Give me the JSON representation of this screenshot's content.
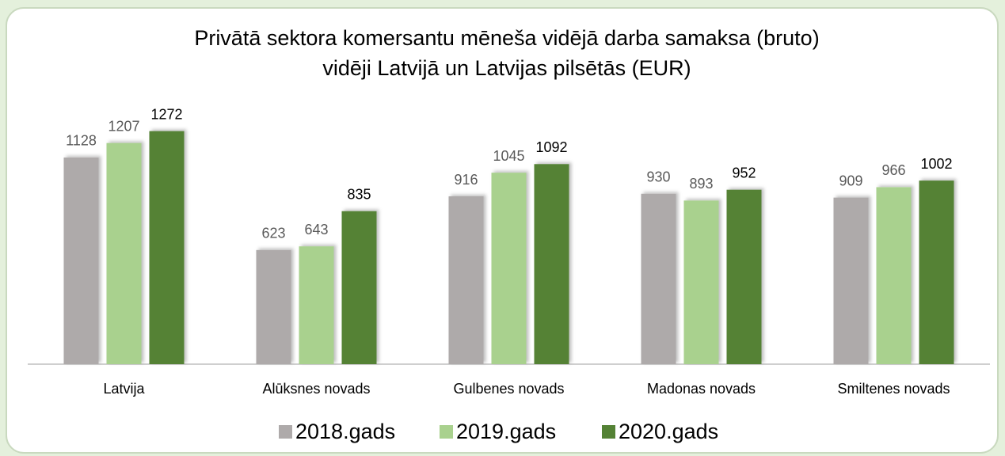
{
  "chart_data": {
    "type": "bar",
    "title": [
      "Privātā sektora komersantu mēneša vidējā darba samaksa (bruto)",
      "vidēji Latvijā un Latvijas pilsētās (EUR)"
    ],
    "categories": [
      "Latvija",
      "Alūksnes novads",
      "Gulbenes novads",
      "Madonas novads",
      "Smiltenes novads"
    ],
    "series": [
      {
        "name": "2018.gads",
        "color": "#aeaaaa",
        "values": [
          1128,
          623,
          916,
          930,
          909
        ]
      },
      {
        "name": "2019.gads",
        "color": "#a9d18e",
        "values": [
          1207,
          643,
          1045,
          893,
          966
        ]
      },
      {
        "name": "2020.gads",
        "color": "#548235",
        "values": [
          1272,
          835,
          1092,
          952,
          1002
        ]
      }
    ],
    "ylim": [
      0,
      1400
    ],
    "legend": "bottom",
    "grid": false
  }
}
